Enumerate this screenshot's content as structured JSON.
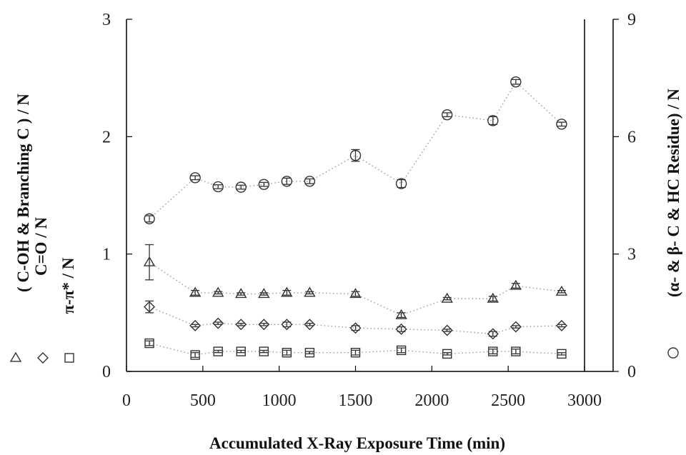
{
  "chart_data": {
    "type": "scatter",
    "xlabel": "Accumulated X-Ray Exposure Time (min)",
    "ylabel_left_lines": [
      "( C-OH & Branching  C ) / N",
      "C=O  /  N",
      "π-π*  /  N"
    ],
    "ylabel_right": "(α- & β- C & HC Residue) / N",
    "xlim": [
      0,
      3000
    ],
    "ylim_left": [
      0,
      3
    ],
    "ylim_right": [
      0,
      9
    ],
    "xticks": [
      "0",
      "500",
      "1000",
      "1500",
      "2000",
      "2500",
      "3000"
    ],
    "yticks_left": [
      "0",
      "1",
      "2",
      "3"
    ],
    "yticks_right": [
      "0",
      "3",
      "6",
      "9"
    ],
    "series": [
      {
        "marker": "triangle",
        "axis": "left",
        "x": [
          150,
          450,
          600,
          750,
          900,
          1050,
          1200,
          1500,
          1800,
          2100,
          2400,
          2550,
          2850
        ],
        "y": [
          0.93,
          0.67,
          0.67,
          0.66,
          0.66,
          0.67,
          0.67,
          0.66,
          0.48,
          0.62,
          0.62,
          0.73,
          0.68
        ],
        "err": [
          0.15,
          0.02,
          0.01,
          0.01,
          0.01,
          0.02,
          0.01,
          0.02,
          0.02,
          0.01,
          0.02,
          0.02,
          0.01
        ]
      },
      {
        "marker": "diamond",
        "axis": "left",
        "x": [
          150,
          450,
          600,
          750,
          900,
          1050,
          1200,
          1500,
          1800,
          2100,
          2400,
          2550,
          2850
        ],
        "y": [
          0.55,
          0.39,
          0.41,
          0.4,
          0.4,
          0.4,
          0.4,
          0.37,
          0.36,
          0.35,
          0.32,
          0.38,
          0.39
        ],
        "err": [
          0.05,
          0.01,
          0.01,
          0.01,
          0.01,
          0.02,
          0.01,
          0.02,
          0.02,
          0.01,
          0.02,
          0.01,
          0.01
        ]
      },
      {
        "marker": "square",
        "axis": "left",
        "x": [
          150,
          450,
          600,
          750,
          900,
          1050,
          1200,
          1500,
          1800,
          2100,
          2400,
          2550,
          2850
        ],
        "y": [
          0.24,
          0.14,
          0.17,
          0.17,
          0.17,
          0.16,
          0.16,
          0.16,
          0.18,
          0.15,
          0.17,
          0.17,
          0.15
        ],
        "err": [
          0.02,
          0.02,
          0.01,
          0.01,
          0.01,
          0.02,
          0.01,
          0.02,
          0.02,
          0.01,
          0.02,
          0.02,
          0.01
        ]
      },
      {
        "marker": "circle",
        "axis": "right",
        "x": [
          150,
          450,
          600,
          750,
          900,
          1050,
          1200,
          1500,
          1800,
          2100,
          2400,
          2550,
          2850
        ],
        "y": [
          3.9,
          4.95,
          4.72,
          4.71,
          4.78,
          4.86,
          4.86,
          5.52,
          4.8,
          6.56,
          6.41,
          7.4,
          6.32
        ],
        "err": [
          0.08,
          0.05,
          0.05,
          0.05,
          0.05,
          0.08,
          0.06,
          0.15,
          0.1,
          0.05,
          0.1,
          0.06,
          0.05
        ]
      }
    ],
    "legend_left_symbols": [
      "triangle",
      "diamond",
      "square"
    ],
    "legend_right_symbol": "circle",
    "grid": false
  }
}
